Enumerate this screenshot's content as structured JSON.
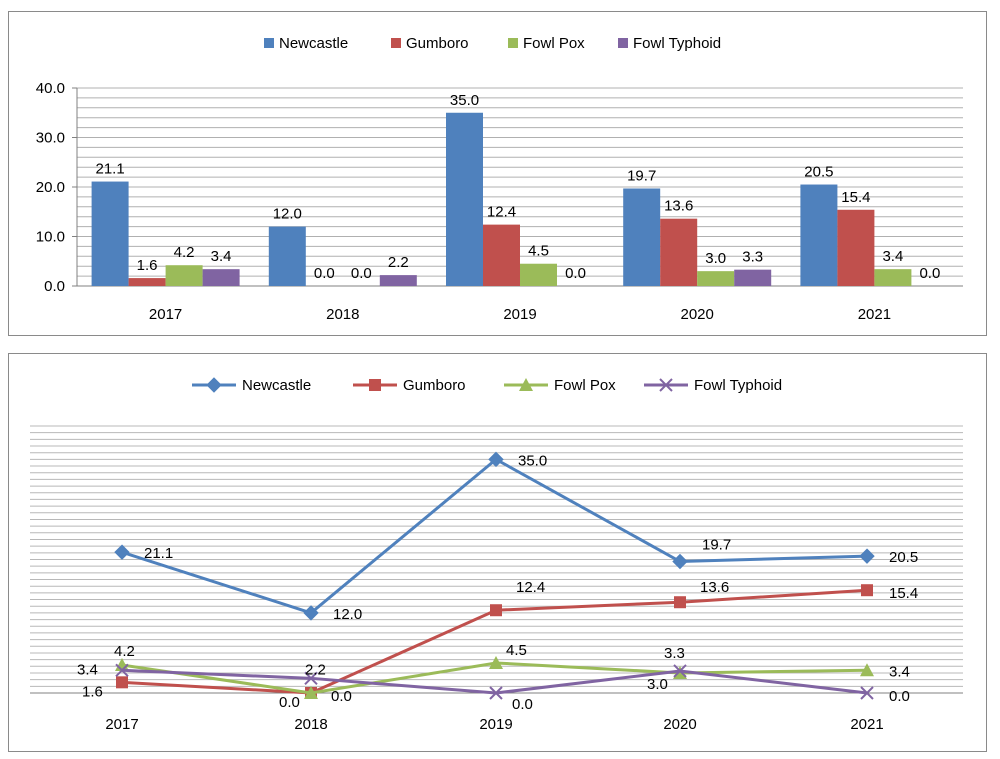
{
  "chart_data": [
    {
      "type": "bar",
      "categories": [
        "2017",
        "2018",
        "2019",
        "2020",
        "2021"
      ],
      "series": [
        {
          "name": "Newcastle",
          "color": "#4f81bd",
          "values": [
            21.1,
            12.0,
            35.0,
            19.7,
            20.5
          ],
          "labels": [
            "21.1",
            "12.0",
            "35.0",
            "19.7",
            "20.5"
          ]
        },
        {
          "name": "Gumboro",
          "color": "#c0504d",
          "values": [
            1.6,
            0.0,
            12.4,
            13.6,
            15.4
          ],
          "labels": [
            "1.6",
            "0.0",
            "12.4",
            "13.6",
            "15.4"
          ]
        },
        {
          "name": "Fowl Pox",
          "color": "#9bbb59",
          "values": [
            4.2,
            0.0,
            4.5,
            3.0,
            3.4
          ],
          "labels": [
            "4.2",
            "0.0",
            "4.5",
            "3.0",
            "3.4"
          ]
        },
        {
          "name": "Fowl Typhoid",
          "color": "#8064a2",
          "values": [
            3.4,
            2.2,
            0.0,
            3.3,
            0.0
          ],
          "labels": [
            "3.4",
            "2.2",
            "0.0",
            "3.3",
            "0.0"
          ]
        }
      ],
      "yticks": [
        "0.0",
        "10.0",
        "20.0",
        "30.0",
        "40.0"
      ],
      "ylim": [
        0,
        40
      ],
      "grid": true,
      "legend": "top"
    },
    {
      "type": "line",
      "categories": [
        "2017",
        "2018",
        "2019",
        "2020",
        "2021"
      ],
      "series": [
        {
          "name": "Newcastle",
          "color": "#4f81bd",
          "marker": "diamond",
          "values": [
            21.1,
            12.0,
            35.0,
            19.7,
            20.5
          ],
          "labels": [
            "21.1",
            "12.0",
            "35.0",
            "19.7",
            "20.5"
          ]
        },
        {
          "name": "Gumboro",
          "color": "#c0504d",
          "marker": "square",
          "values": [
            1.6,
            0.0,
            12.4,
            13.6,
            15.4
          ],
          "labels": [
            "1.6",
            "0.0",
            "12.4",
            "13.6",
            "15.4"
          ]
        },
        {
          "name": "Fowl Pox",
          "color": "#9bbb59",
          "marker": "triangle",
          "values": [
            4.2,
            0.0,
            4.5,
            3.0,
            3.4
          ],
          "labels": [
            "4.2",
            "0.0",
            "4.5",
            "3.0",
            "3.4"
          ]
        },
        {
          "name": "Fowl Typhoid",
          "color": "#8064a2",
          "marker": "x",
          "values": [
            3.4,
            2.2,
            0.0,
            3.3,
            0.0
          ],
          "labels": [
            "3.4",
            "2.2",
            "0.0",
            "3.3",
            "0.0"
          ]
        }
      ],
      "ylim": [
        0,
        40
      ],
      "grid": true,
      "legend": "top"
    }
  ]
}
